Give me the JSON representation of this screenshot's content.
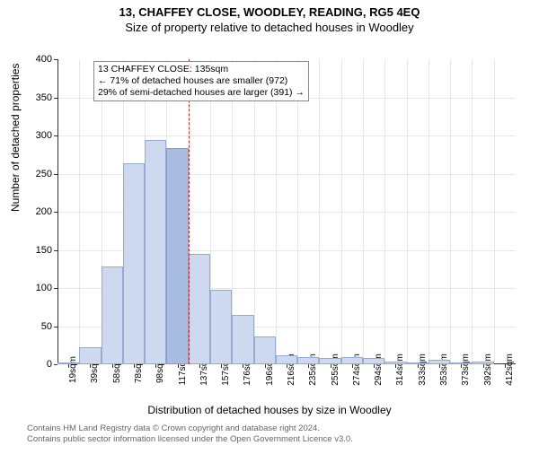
{
  "title_line1": "13, CHAFFEY CLOSE, WOODLEY, READING, RG5 4EQ",
  "title_line2": "Size of property relative to detached houses in Woodley",
  "y_axis_label": "Number of detached properties",
  "x_axis_label": "Distribution of detached houses by size in Woodley",
  "footer_line1": "Contains HM Land Registry data © Crown copyright and database right 2024.",
  "footer_line2": "Contains public sector information licensed under the Open Government Licence v3.0.",
  "annotation": {
    "line1": "13 CHAFFEY CLOSE: 135sqm",
    "line2": "← 71% of detached houses are smaller (972)",
    "line3": "29% of semi-detached houses are larger (391) →"
  },
  "chart": {
    "type": "histogram",
    "y_min": 0,
    "y_max": 400,
    "y_ticks": [
      0,
      50,
      100,
      150,
      200,
      250,
      300,
      350,
      400
    ],
    "x_tick_labels": [
      "19sqm",
      "39sqm",
      "58sqm",
      "78sqm",
      "98sqm",
      "117sqm",
      "137sqm",
      "157sqm",
      "176sqm",
      "196sqm",
      "216sqm",
      "235sqm",
      "255sqm",
      "274sqm",
      "294sqm",
      "314sqm",
      "333sqm",
      "353sqm",
      "373sqm",
      "392sqm",
      "412sqm"
    ],
    "bars": [
      {
        "value": 2,
        "highlight": false
      },
      {
        "value": 22,
        "highlight": false
      },
      {
        "value": 128,
        "highlight": false
      },
      {
        "value": 264,
        "highlight": false
      },
      {
        "value": 294,
        "highlight": false
      },
      {
        "value": 284,
        "highlight": true
      },
      {
        "value": 145,
        "highlight": false
      },
      {
        "value": 98,
        "highlight": false
      },
      {
        "value": 65,
        "highlight": false
      },
      {
        "value": 36,
        "highlight": false
      },
      {
        "value": 12,
        "highlight": false
      },
      {
        "value": 10,
        "highlight": false
      },
      {
        "value": 8,
        "highlight": false
      },
      {
        "value": 10,
        "highlight": false
      },
      {
        "value": 8,
        "highlight": false
      },
      {
        "value": 4,
        "highlight": false
      },
      {
        "value": 2,
        "highlight": false
      },
      {
        "value": 6,
        "highlight": false
      },
      {
        "value": 2,
        "highlight": false
      },
      {
        "value": 3,
        "highlight": false
      },
      {
        "value": 0,
        "highlight": false
      }
    ],
    "bar_color": "#cdd9ef",
    "bar_highlight_color": "#a9bde2",
    "grid_color": "#e6e6f0",
    "reference_line_color": "#dd2222",
    "reference_after_bar_index": 5
  }
}
